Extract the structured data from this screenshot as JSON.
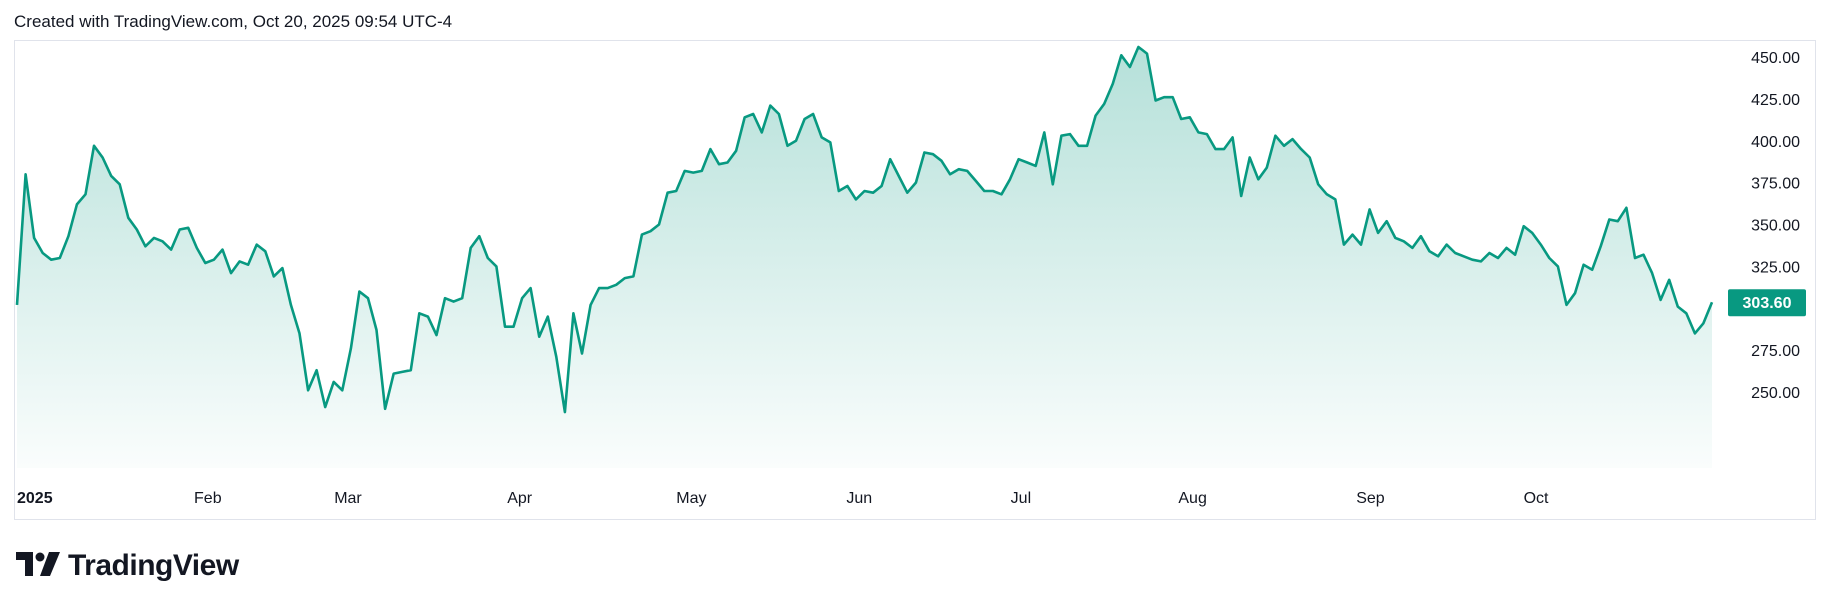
{
  "header": {
    "text": "Created with TradingView.com, Oct 20, 2025 09:54 UTC-4"
  },
  "brand": {
    "name": "TradingView",
    "icon": "tradingview-logo-icon"
  },
  "colors": {
    "line": "#089981",
    "area_top": "#089981",
    "price_tag": "#089981",
    "text": "#131722",
    "border": "#e0e3eb"
  },
  "chart_data": {
    "type": "area",
    "x_labels": [
      "2025",
      "Feb",
      "Mar",
      "Apr",
      "May",
      "Jun",
      "Jul",
      "Aug",
      "Sep",
      "Oct"
    ],
    "y_ticks": [
      "450.00",
      "425.00",
      "400.00",
      "375.00",
      "350.00",
      "325.00",
      "275.00",
      "250.00"
    ],
    "ylim": [
      235,
      458
    ],
    "last_price": "303.60",
    "grid": false,
    "series": [
      {
        "values": [
          302,
          380,
          342,
          333,
          329,
          330,
          343,
          362,
          368,
          397,
          390,
          379,
          374,
          354,
          347,
          337,
          342,
          340,
          335,
          347,
          348,
          336,
          327,
          329,
          335,
          321,
          328,
          326,
          338,
          334,
          319,
          324,
          302,
          285,
          251,
          263,
          241,
          256,
          251,
          276,
          310,
          306,
          287,
          240,
          261,
          262,
          263,
          297,
          295,
          284,
          306,
          304,
          306,
          336,
          343,
          330,
          325,
          289,
          289,
          306,
          312,
          283,
          295,
          271,
          238,
          297,
          273,
          302,
          312,
          312,
          314,
          318,
          319,
          344,
          346,
          350,
          369,
          370,
          382,
          381,
          382,
          395,
          386,
          387,
          394,
          414,
          416,
          405,
          421,
          416,
          397,
          400,
          413,
          416,
          402,
          399,
          370,
          373,
          365,
          370,
          369,
          373,
          389,
          379,
          369,
          375,
          393,
          392,
          388,
          380,
          383,
          382,
          376,
          370,
          370,
          368,
          377,
          389,
          387,
          385,
          405,
          374,
          403,
          404,
          397,
          397,
          415,
          422,
          434,
          451,
          444,
          456,
          452,
          424,
          426,
          426,
          413,
          414,
          405,
          404,
          395,
          395,
          402,
          367,
          390,
          377,
          384,
          403,
          397,
          401,
          395,
          390,
          374,
          368,
          365,
          338,
          344,
          338,
          359,
          345,
          352,
          342,
          340,
          336,
          343,
          334,
          331,
          338,
          333,
          331,
          329,
          328,
          333,
          330,
          336,
          332,
          349,
          345,
          338,
          330,
          325,
          302,
          309,
          326,
          323,
          337,
          353,
          352,
          360,
          330,
          332,
          321,
          305,
          317,
          301,
          297,
          285,
          291,
          303.6
        ]
      }
    ]
  }
}
